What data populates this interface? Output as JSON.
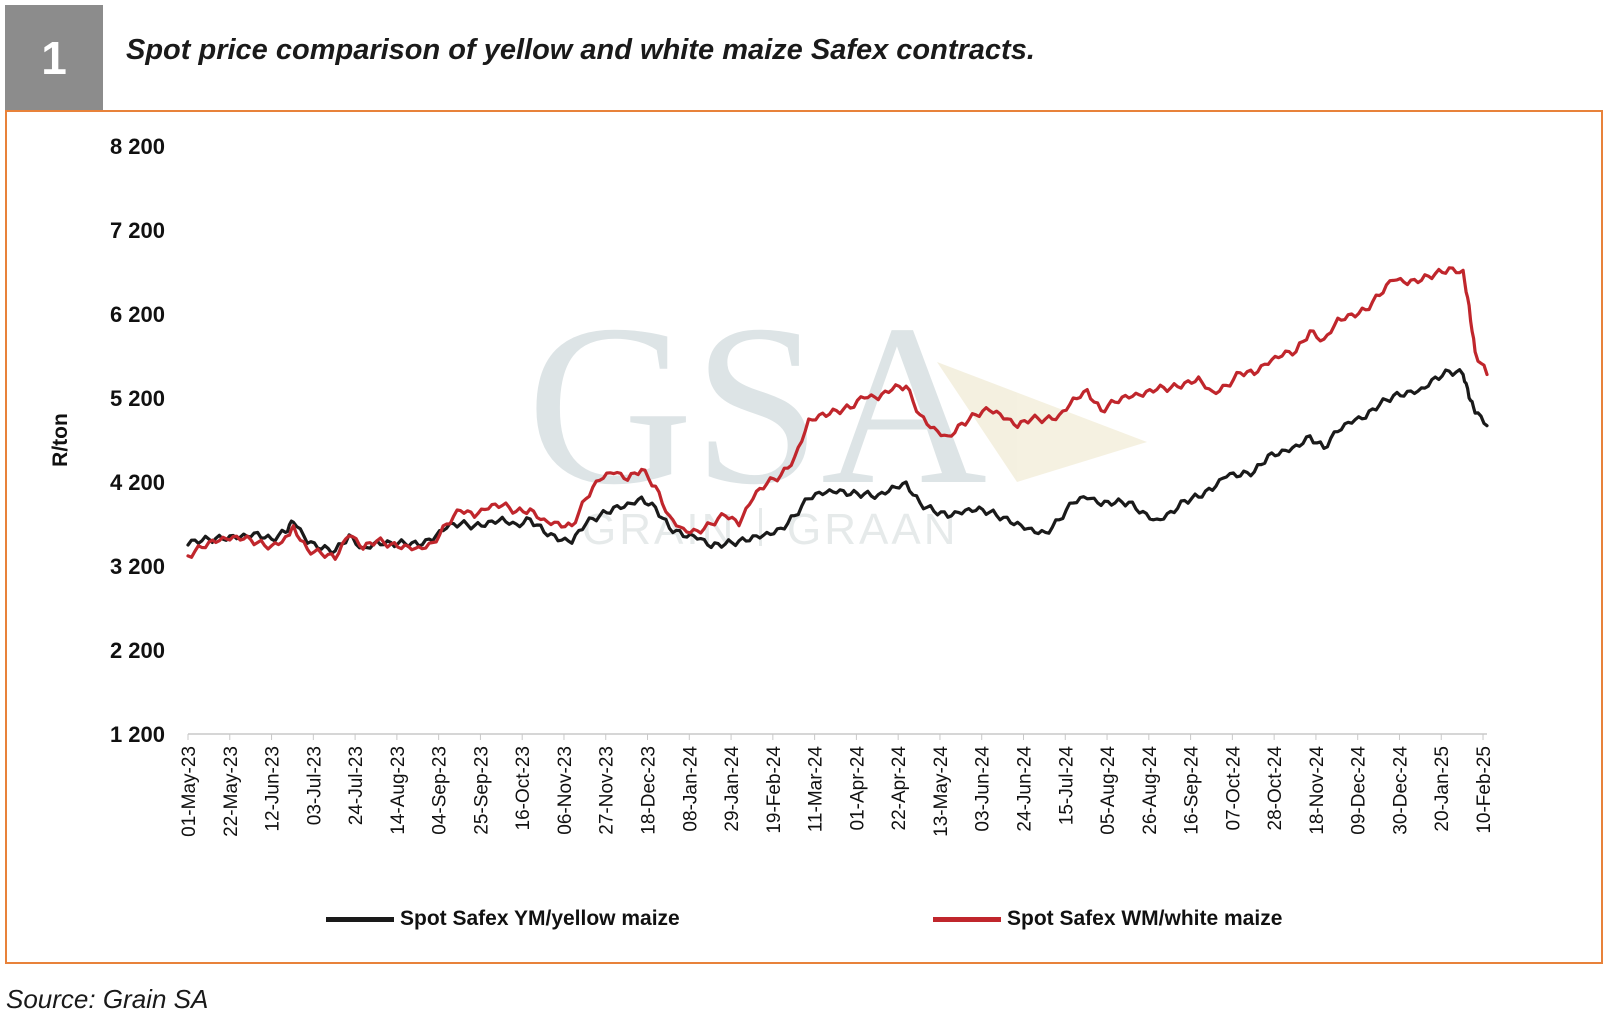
{
  "figure": {
    "number": "1",
    "title": "Spot price comparison of yellow and white maize Safex contracts.",
    "source": "Source: Grain SA"
  },
  "watermark": {
    "monogram": "GSA",
    "text_left": "GRAIN",
    "text_right": "GRAAN"
  },
  "chart_data": {
    "type": "line",
    "title": "",
    "xlabel": "",
    "ylabel": "R/ton",
    "ylim": [
      1200,
      8200
    ],
    "yticks": [
      1200,
      2200,
      3200,
      4200,
      5200,
      6200,
      7200,
      8200
    ],
    "ytick_labels": [
      "1 200",
      "2 200",
      "3 200",
      "4 200",
      "5 200",
      "6 200",
      "7 200",
      "8 200"
    ],
    "x_start": "2023-05-01",
    "x_end": "2025-02-12",
    "xtick_labels": [
      "01-May-23",
      "22-May-23",
      "12-Jun-23",
      "03-Jul-23",
      "24-Jul-23",
      "14-Aug-23",
      "04-Sep-23",
      "25-Sep-23",
      "16-Oct-23",
      "06-Nov-23",
      "27-Nov-23",
      "18-Dec-23",
      "08-Jan-24",
      "29-Jan-24",
      "19-Feb-24",
      "11-Mar-24",
      "01-Apr-24",
      "22-Apr-24",
      "13-May-24",
      "03-Jun-24",
      "24-Jun-24",
      "15-Jul-24",
      "05-Aug-24",
      "26-Aug-24",
      "16-Sep-24",
      "07-Oct-24",
      "28-Oct-24",
      "18-Nov-24",
      "09-Dec-24",
      "30-Dec-24",
      "20-Jan-25",
      "10-Feb-25"
    ],
    "grid": false,
    "legend_position": "bottom",
    "series": [
      {
        "name": "Spot Safex YM/yellow maize",
        "color": "#1a1a1a",
        "points": [
          [
            "2023-05-01",
            3450
          ],
          [
            "2023-05-08",
            3500
          ],
          [
            "2023-05-15",
            3530
          ],
          [
            "2023-05-22",
            3560
          ],
          [
            "2023-05-29",
            3580
          ],
          [
            "2023-06-05",
            3600
          ],
          [
            "2023-06-12",
            3520
          ],
          [
            "2023-06-19",
            3600
          ],
          [
            "2023-06-23",
            3720
          ],
          [
            "2023-06-30",
            3470
          ],
          [
            "2023-07-07",
            3400
          ],
          [
            "2023-07-14",
            3380
          ],
          [
            "2023-07-21",
            3570
          ],
          [
            "2023-07-28",
            3420
          ],
          [
            "2023-08-04",
            3500
          ],
          [
            "2023-08-11",
            3480
          ],
          [
            "2023-08-18",
            3470
          ],
          [
            "2023-08-25",
            3440
          ],
          [
            "2023-09-01",
            3500
          ],
          [
            "2023-09-08",
            3650
          ],
          [
            "2023-09-15",
            3700
          ],
          [
            "2023-09-22",
            3680
          ],
          [
            "2023-09-29",
            3730
          ],
          [
            "2023-10-06",
            3780
          ],
          [
            "2023-10-13",
            3700
          ],
          [
            "2023-10-20",
            3760
          ],
          [
            "2023-10-27",
            3600
          ],
          [
            "2023-11-03",
            3500
          ],
          [
            "2023-11-10",
            3470
          ],
          [
            "2023-11-17",
            3700
          ],
          [
            "2023-11-24",
            3800
          ],
          [
            "2023-12-01",
            3900
          ],
          [
            "2023-12-08",
            3950
          ],
          [
            "2023-12-15",
            4020
          ],
          [
            "2023-12-22",
            3900
          ],
          [
            "2023-12-29",
            3650
          ],
          [
            "2024-01-05",
            3550
          ],
          [
            "2024-01-12",
            3520
          ],
          [
            "2024-01-19",
            3420
          ],
          [
            "2024-01-26",
            3460
          ],
          [
            "2024-02-02",
            3500
          ],
          [
            "2024-02-09",
            3560
          ],
          [
            "2024-02-16",
            3600
          ],
          [
            "2024-02-23",
            3650
          ],
          [
            "2024-03-01",
            3800
          ],
          [
            "2024-03-08",
            4000
          ],
          [
            "2024-03-15",
            4050
          ],
          [
            "2024-03-22",
            4070
          ],
          [
            "2024-03-29",
            4050
          ],
          [
            "2024-04-05",
            4060
          ],
          [
            "2024-04-12",
            4050
          ],
          [
            "2024-04-19",
            4150
          ],
          [
            "2024-04-26",
            4200
          ],
          [
            "2024-05-03",
            3950
          ],
          [
            "2024-05-10",
            3850
          ],
          [
            "2024-05-17",
            3780
          ],
          [
            "2024-05-24",
            3820
          ],
          [
            "2024-05-31",
            3860
          ],
          [
            "2024-06-07",
            3840
          ],
          [
            "2024-06-14",
            3780
          ],
          [
            "2024-06-21",
            3720
          ],
          [
            "2024-06-28",
            3650
          ],
          [
            "2024-07-05",
            3600
          ],
          [
            "2024-07-12",
            3750
          ],
          [
            "2024-07-19",
            3950
          ],
          [
            "2024-07-26",
            4000
          ],
          [
            "2024-08-02",
            3920
          ],
          [
            "2024-08-09",
            3950
          ],
          [
            "2024-08-16",
            3960
          ],
          [
            "2024-08-23",
            3850
          ],
          [
            "2024-08-30",
            3760
          ],
          [
            "2024-09-06",
            3850
          ],
          [
            "2024-09-13",
            3980
          ],
          [
            "2024-09-20",
            4020
          ],
          [
            "2024-09-27",
            4100
          ],
          [
            "2024-10-04",
            4260
          ],
          [
            "2024-10-11",
            4270
          ],
          [
            "2024-10-18",
            4320
          ],
          [
            "2024-10-25",
            4520
          ],
          [
            "2024-11-01",
            4580
          ],
          [
            "2024-11-08",
            4640
          ],
          [
            "2024-11-15",
            4750
          ],
          [
            "2024-11-22",
            4600
          ],
          [
            "2024-11-29",
            4800
          ],
          [
            "2024-12-06",
            4900
          ],
          [
            "2024-12-13",
            4960
          ],
          [
            "2024-12-20",
            5120
          ],
          [
            "2024-12-27",
            5230
          ],
          [
            "2025-01-03",
            5280
          ],
          [
            "2025-01-10",
            5320
          ],
          [
            "2025-01-17",
            5450
          ],
          [
            "2025-01-24",
            5520
          ],
          [
            "2025-01-31",
            5480
          ],
          [
            "2025-02-03",
            5200
          ],
          [
            "2025-02-06",
            5020
          ],
          [
            "2025-02-12",
            4870
          ]
        ]
      },
      {
        "name": "Spot Safex WM/white maize",
        "color": "#c0262c",
        "points": [
          [
            "2023-05-01",
            3320
          ],
          [
            "2023-05-08",
            3420
          ],
          [
            "2023-05-15",
            3480
          ],
          [
            "2023-05-22",
            3510
          ],
          [
            "2023-05-29",
            3520
          ],
          [
            "2023-06-05",
            3480
          ],
          [
            "2023-06-12",
            3440
          ],
          [
            "2023-06-19",
            3550
          ],
          [
            "2023-06-23",
            3680
          ],
          [
            "2023-06-30",
            3400
          ],
          [
            "2023-07-07",
            3350
          ],
          [
            "2023-07-14",
            3280
          ],
          [
            "2023-07-21",
            3560
          ],
          [
            "2023-07-28",
            3400
          ],
          [
            "2023-08-04",
            3500
          ],
          [
            "2023-08-11",
            3460
          ],
          [
            "2023-08-18",
            3450
          ],
          [
            "2023-08-25",
            3430
          ],
          [
            "2023-09-01",
            3480
          ],
          [
            "2023-09-08",
            3700
          ],
          [
            "2023-09-15",
            3860
          ],
          [
            "2023-09-22",
            3780
          ],
          [
            "2023-09-29",
            3880
          ],
          [
            "2023-10-06",
            3920
          ],
          [
            "2023-10-13",
            3850
          ],
          [
            "2023-10-20",
            3880
          ],
          [
            "2023-10-27",
            3760
          ],
          [
            "2023-11-03",
            3720
          ],
          [
            "2023-11-10",
            3680
          ],
          [
            "2023-11-17",
            4000
          ],
          [
            "2023-11-24",
            4220
          ],
          [
            "2023-12-01",
            4300
          ],
          [
            "2023-12-08",
            4220
          ],
          [
            "2023-12-15",
            4350
          ],
          [
            "2023-12-22",
            4150
          ],
          [
            "2023-12-29",
            3800
          ],
          [
            "2024-01-05",
            3650
          ],
          [
            "2024-01-12",
            3620
          ],
          [
            "2024-01-19",
            3700
          ],
          [
            "2024-01-26",
            3800
          ],
          [
            "2024-02-02",
            3680
          ],
          [
            "2024-02-09",
            4000
          ],
          [
            "2024-02-16",
            4180
          ],
          [
            "2024-02-23",
            4280
          ],
          [
            "2024-03-01",
            4500
          ],
          [
            "2024-03-08",
            4950
          ],
          [
            "2024-03-15",
            5020
          ],
          [
            "2024-03-22",
            5050
          ],
          [
            "2024-03-29",
            5080
          ],
          [
            "2024-04-05",
            5200
          ],
          [
            "2024-04-12",
            5180
          ],
          [
            "2024-04-19",
            5300
          ],
          [
            "2024-04-26",
            5340
          ],
          [
            "2024-05-03",
            5000
          ],
          [
            "2024-05-10",
            4850
          ],
          [
            "2024-05-17",
            4750
          ],
          [
            "2024-05-24",
            4900
          ],
          [
            "2024-05-31",
            5000
          ],
          [
            "2024-06-07",
            5050
          ],
          [
            "2024-06-14",
            4950
          ],
          [
            "2024-06-21",
            4850
          ],
          [
            "2024-06-28",
            4950
          ],
          [
            "2024-07-05",
            4950
          ],
          [
            "2024-07-12",
            5000
          ],
          [
            "2024-07-19",
            5200
          ],
          [
            "2024-07-26",
            5300
          ],
          [
            "2024-08-02",
            5050
          ],
          [
            "2024-08-09",
            5150
          ],
          [
            "2024-08-16",
            5200
          ],
          [
            "2024-08-23",
            5220
          ],
          [
            "2024-08-30",
            5300
          ],
          [
            "2024-09-06",
            5320
          ],
          [
            "2024-09-13",
            5380
          ],
          [
            "2024-09-20",
            5450
          ],
          [
            "2024-09-27",
            5280
          ],
          [
            "2024-10-04",
            5350
          ],
          [
            "2024-10-11",
            5500
          ],
          [
            "2024-10-18",
            5480
          ],
          [
            "2024-10-25",
            5600
          ],
          [
            "2024-11-01",
            5700
          ],
          [
            "2024-11-08",
            5750
          ],
          [
            "2024-11-15",
            6000
          ],
          [
            "2024-11-22",
            5900
          ],
          [
            "2024-11-29",
            6150
          ],
          [
            "2024-12-06",
            6200
          ],
          [
            "2024-12-13",
            6250
          ],
          [
            "2024-12-20",
            6420
          ],
          [
            "2024-12-27",
            6600
          ],
          [
            "2025-01-03",
            6550
          ],
          [
            "2025-01-10",
            6600
          ],
          [
            "2025-01-17",
            6680
          ],
          [
            "2025-01-24",
            6750
          ],
          [
            "2025-01-31",
            6720
          ],
          [
            "2025-02-03",
            6300
          ],
          [
            "2025-02-06",
            5750
          ],
          [
            "2025-02-12",
            5480
          ]
        ]
      }
    ]
  }
}
